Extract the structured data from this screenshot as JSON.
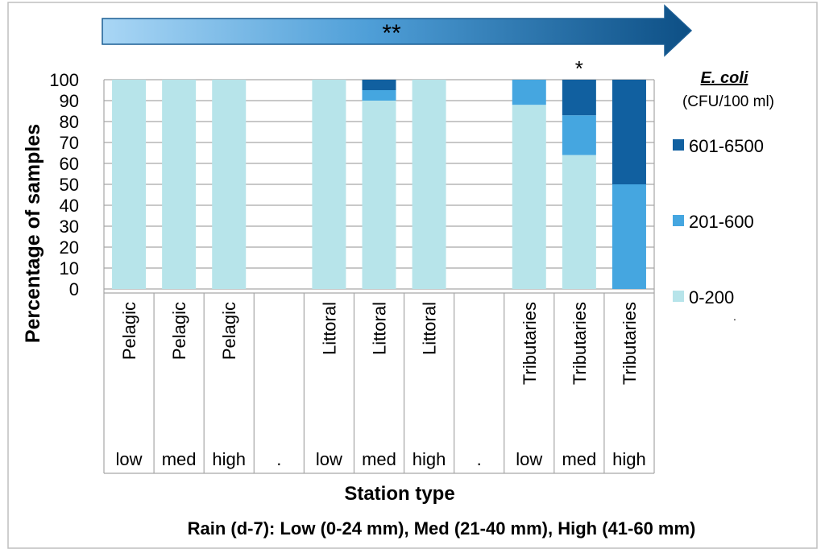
{
  "chart_data": {
    "type": "bar",
    "stacked": true,
    "orientation": "vertical",
    "ylabel": "Percentage of samples",
    "xlabel": "Station type",
    "subtitle": "Rain (d-7): Low (0-24 mm), Med (21-40 mm), High (41-60 mm)",
    "ylim": [
      0,
      100
    ],
    "yticks": [
      0,
      10,
      20,
      30,
      40,
      50,
      60,
      70,
      80,
      90,
      100
    ],
    "grid": true,
    "categories": [
      {
        "station": "Pelagic",
        "rain": "low"
      },
      {
        "station": "Pelagic",
        "rain": "med"
      },
      {
        "station": "Pelagic",
        "rain": "high"
      },
      {
        "station": "",
        "rain": "."
      },
      {
        "station": "Littoral",
        "rain": "low"
      },
      {
        "station": "Littoral",
        "rain": "med"
      },
      {
        "station": "Littoral",
        "rain": "high"
      },
      {
        "station": "",
        "rain": "."
      },
      {
        "station": "Tributaries",
        "rain": "low"
      },
      {
        "station": "Tributaries",
        "rain": "med"
      },
      {
        "station": "Tributaries",
        "rain": "high"
      }
    ],
    "series": [
      {
        "name": "0-200",
        "color": "#b7e4ea",
        "values": [
          100,
          100,
          100,
          0,
          100,
          90,
          100,
          0,
          88,
          64,
          0
        ]
      },
      {
        "name": "201-600",
        "color": "#45a6e0",
        "values": [
          0,
          0,
          0,
          0,
          0,
          5,
          0,
          0,
          12,
          19,
          50
        ]
      },
      {
        "name": "601-6500",
        "color": "#1160a0",
        "values": [
          0,
          0,
          0,
          0,
          0,
          5,
          0,
          0,
          0,
          17,
          50
        ]
      }
    ],
    "legend": {
      "title_italic": "E. coli",
      "title_units": "(CFU/100 ml)",
      "placement": "right",
      "order": [
        "601-6500",
        "201-600",
        "0-200"
      ]
    },
    "annotations": {
      "arrow_label": "**",
      "bar_star": "*",
      "bar_star_category_index": 9,
      "legend_dot": "."
    }
  }
}
